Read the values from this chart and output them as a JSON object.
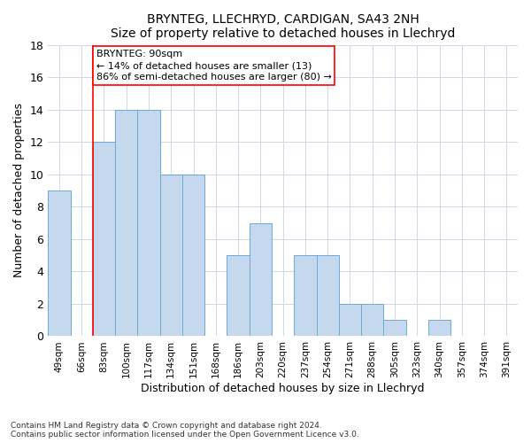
{
  "title": "BRYNTEG, LLECHRYD, CARDIGAN, SA43 2NH",
  "subtitle": "Size of property relative to detached houses in Llechryd",
  "xlabel": "Distribution of detached houses by size in Llechryd",
  "ylabel": "Number of detached properties",
  "categories": [
    "49sqm",
    "66sqm",
    "83sqm",
    "100sqm",
    "117sqm",
    "134sqm",
    "151sqm",
    "168sqm",
    "186sqm",
    "203sqm",
    "220sqm",
    "237sqm",
    "254sqm",
    "271sqm",
    "288sqm",
    "305sqm",
    "323sqm",
    "340sqm",
    "357sqm",
    "374sqm",
    "391sqm"
  ],
  "values": [
    9,
    0,
    12,
    14,
    14,
    10,
    10,
    0,
    5,
    7,
    0,
    5,
    5,
    2,
    2,
    1,
    0,
    1,
    0,
    0,
    0
  ],
  "bar_color": "#c5d8ee",
  "bar_edge_color": "#6aaad4",
  "ylim": [
    0,
    18
  ],
  "yticks": [
    0,
    2,
    4,
    6,
    8,
    10,
    12,
    14,
    16,
    18
  ],
  "annotation_box_text": "BRYNTEG: 90sqm\n← 14% of detached houses are smaller (13)\n86% of semi-detached houses are larger (80) →",
  "red_line_index": 2,
  "footnote_line1": "Contains HM Land Registry data © Crown copyright and database right 2024.",
  "footnote_line2": "Contains public sector information licensed under the Open Government Licence v3.0.",
  "background_color": "#ffffff",
  "plot_bg_color": "#ffffff",
  "grid_color": "#d0d8e8"
}
